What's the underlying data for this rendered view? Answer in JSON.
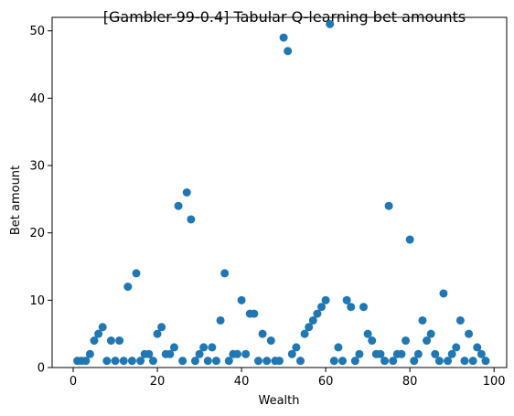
{
  "chart_data": {
    "type": "scatter",
    "title": "[Gambler-99-0.4] Tabular Q-learning bet amounts",
    "xlabel": "Wealth",
    "ylabel": "Bet amount",
    "xlim": [
      -5,
      103
    ],
    "ylim": [
      0,
      52
    ],
    "xticks": [
      0,
      20,
      40,
      60,
      80,
      100
    ],
    "yticks": [
      0,
      10,
      20,
      30,
      40,
      50
    ],
    "grid": false,
    "marker_color": "#1f77b4",
    "series": [
      {
        "x": [
          1,
          2,
          3,
          4,
          5,
          6,
          7,
          8,
          9,
          10,
          11,
          12,
          13,
          14,
          15,
          16,
          17,
          18,
          19,
          20,
          21,
          22,
          23,
          24,
          25,
          26,
          27,
          28,
          29,
          30,
          31,
          32,
          33,
          34,
          35,
          36,
          37,
          38,
          39,
          40,
          41,
          42,
          43,
          44,
          45,
          46,
          47,
          48,
          49,
          50,
          51,
          52,
          53,
          54,
          55,
          56,
          57,
          58,
          59,
          60,
          61,
          62,
          63,
          64,
          65,
          66,
          67,
          68,
          69,
          70,
          71,
          72,
          73,
          74,
          75,
          76,
          77,
          78,
          79,
          80,
          81,
          82,
          83,
          84,
          85,
          86,
          87,
          88,
          89,
          90,
          91,
          92,
          93,
          94,
          95,
          96,
          97,
          98
        ],
        "y": [
          1,
          1,
          1,
          2,
          4,
          5,
          6,
          1,
          4,
          1,
          4,
          1,
          12,
          1,
          14,
          1,
          2,
          2,
          1,
          5,
          6,
          2,
          2,
          3,
          24,
          1,
          26,
          22,
          1,
          2,
          3,
          1,
          3,
          1,
          7,
          14,
          1,
          2,
          2,
          10,
          2,
          8,
          8,
          1,
          5,
          1,
          4,
          1,
          1,
          49,
          47,
          2,
          3,
          1,
          5,
          6,
          7,
          8,
          9,
          10,
          51,
          1,
          3,
          1,
          10,
          9,
          1,
          2,
          9,
          5,
          4,
          2,
          2,
          1,
          24,
          1,
          2,
          2,
          4,
          19,
          1,
          2,
          7,
          4,
          5,
          2,
          1,
          11,
          1,
          2,
          3,
          7,
          1,
          5,
          1,
          3,
          2,
          1
        ]
      }
    ]
  }
}
